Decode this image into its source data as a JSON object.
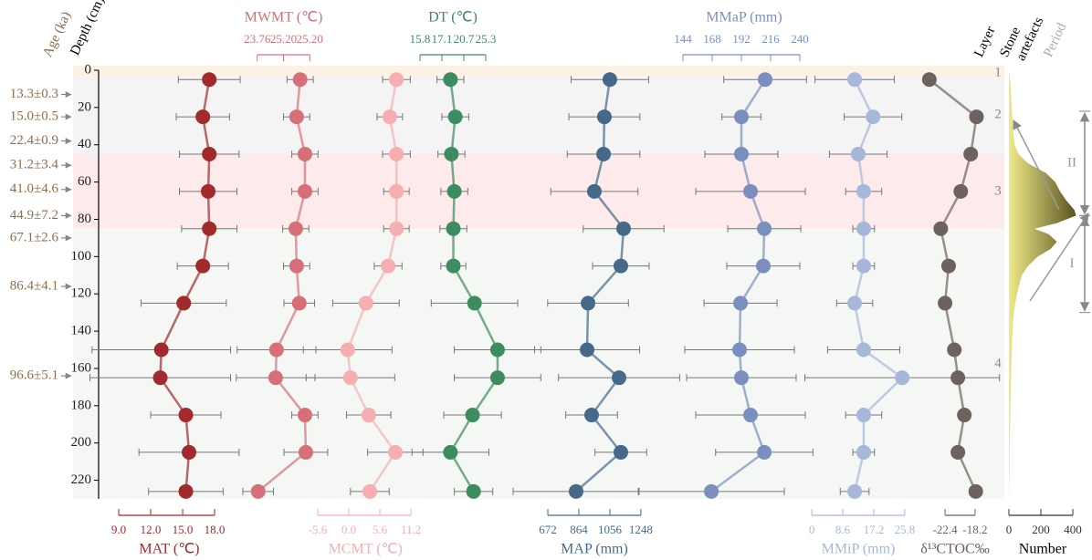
{
  "chart_data": [
    {
      "type": "profile",
      "y_label": "Depth (cm)",
      "ylim": [
        0,
        230
      ],
      "yticks": [
        0,
        20,
        40,
        60,
        80,
        100,
        120,
        140,
        160,
        180,
        200,
        220
      ],
      "depths": [
        5,
        25,
        45,
        65,
        85,
        105,
        125,
        150,
        165,
        185,
        205,
        226
      ],
      "series": [
        {
          "name": "MAT (℃)",
          "color": "#a12a2c",
          "axis": "bottom",
          "xlim": [
            8.5,
            19
          ],
          "xticks": [
            {
              "value": 9,
              "label": "9.0"
            },
            {
              "value": 12,
              "label": "12.0"
            },
            {
              "value": 15,
              "label": "15.0"
            },
            {
              "value": 18,
              "label": "18.0"
            }
          ],
          "values": [
            17.5,
            16.9,
            17.5,
            17.4,
            17.5,
            16.9,
            15.1,
            13.0,
            12.9,
            15.3,
            15.6,
            15.3
          ],
          "errors": [
            2.9,
            2.5,
            2.8,
            2.7,
            2.6,
            2.4,
            4.0,
            6.5,
            6.6,
            3.3,
            4.7,
            3.5
          ]
        },
        {
          "name": "MWMT (℃)",
          "color": "#d66f78",
          "axis": "top",
          "xlim": [
            23.2,
            25.6
          ],
          "xtick_labels": [
            "23.76",
            "25.20",
            "25.20"
          ],
          "values": [
            24.78,
            24.7,
            24.89,
            24.89,
            24.68,
            24.7,
            24.76,
            24.24,
            24.22,
            24.89,
            24.91,
            23.82
          ],
          "errors": [
            0.3,
            0.3,
            0.3,
            0.3,
            0.3,
            0.3,
            0.35,
            0.9,
            0.9,
            0.3,
            0.5,
            0.35
          ]
        },
        {
          "name": "MCMT (℃)",
          "color": "#f6aeb0",
          "axis": "bottom",
          "xlim": [
            -7,
            13
          ],
          "xticks": [
            {
              "value": -5.6,
              "label": "-5.6"
            },
            {
              "value": 0,
              "label": "0.0"
            },
            5.6,
            11.2
          ],
          "values": [
            8.6,
            7.4,
            8.6,
            8.6,
            8.6,
            7.1,
            3.1,
            -0.2,
            0.3,
            3.6,
            8.4,
            3.8
          ],
          "errors": [
            2.5,
            2.3,
            2.5,
            2.3,
            2.3,
            2.5,
            6.0,
            8.0,
            8.0,
            4.0,
            5.0,
            3.5
          ]
        },
        {
          "name": "DT (℃)",
          "color": "#3c8c5f",
          "axis": "top",
          "xlim": [
            14.85,
            26.25
          ],
          "xtick_labels": [
            "15.8",
            "17.1",
            "20.7",
            "25.3"
          ],
          "values": [
            20.3,
            20.8,
            20.4,
            20.7,
            20.6,
            20.6,
            22.8,
            25.2,
            25.2,
            22.6,
            20.3,
            22.7
          ],
          "errors": [
            1.4,
            1.4,
            1.4,
            1.4,
            1.4,
            1.3,
            4.5,
            4.5,
            4.5,
            3.0,
            4.0,
            2.0
          ]
        },
        {
          "name": "MAP (mm)",
          "color": "#46698a",
          "axis": "bottom",
          "xlim": [
            615.5,
            1305
          ],
          "xticks": [
            672,
            864,
            1056,
            1248
          ],
          "values": [
            1056,
            1022,
            1017,
            960,
            1141,
            1124,
            921,
            915,
            1113,
            943,
            1124,
            847
          ],
          "errors": [
            240,
            220,
            225,
            270,
            250,
            175,
            250,
            325,
            375,
            160,
            160,
            390
          ]
        },
        {
          "name": "MMaP (mm)",
          "color": "#7b8fbf",
          "axis": "top",
          "xlim": [
            138,
            250.5
          ],
          "xticks": [
            144,
            168,
            192,
            216,
            240
          ],
          "values": [
            211.5,
            192,
            192,
            199.5,
            210.8,
            210,
            191.3,
            190.5,
            192,
            199.5,
            210.8,
            167.3
          ],
          "errors": [
            34,
            16,
            30,
            45,
            30,
            30,
            30,
            45,
            45,
            45,
            40,
            60
          ]
        },
        {
          "name": "MMiP (mm)",
          "color": "#a7b7d9",
          "axis": "bottom",
          "xlim": [
            -2.3,
            28.1
          ],
          "xticks": [
            0,
            8.6,
            17.2,
            25.8
          ],
          "values": [
            11.9,
            17.0,
            12.9,
            14.4,
            14.4,
            14.4,
            11.9,
            14.4,
            25.1,
            14.4,
            14.4,
            11.9
          ],
          "errors": [
            11,
            8,
            8,
            5,
            3,
            3,
            5,
            10,
            27,
            5,
            3,
            4
          ]
        },
        {
          "name": "δ¹³CTOC‰",
          "color": "#6e625e",
          "axis": "bottom",
          "xlim": [
            -25.6,
            -16.4
          ],
          "xticks": [
            -22.4,
            -18.2
          ],
          "values": [
            -24.6,
            -18.0,
            -18.8,
            -20.2,
            -23.0,
            -21.9,
            -22.4,
            -21.1,
            -20.6,
            -19.7,
            -20.6,
            -18.1
          ]
        }
      ]
    },
    {
      "type": "area",
      "x_label": "Number",
      "xlim": [
        0,
        440
      ],
      "xticks": [
        0,
        200,
        400
      ],
      "color_start": "#eeea88",
      "color_end": "#5a5320",
      "depths": [
        0,
        5,
        10,
        20,
        30,
        40,
        45,
        50,
        55,
        60,
        65,
        70,
        75,
        78,
        82,
        85,
        88,
        92,
        96,
        100,
        105,
        110,
        120,
        130,
        140,
        160,
        180,
        200,
        220,
        230
      ],
      "values": [
        0,
        8,
        12,
        18,
        25,
        35,
        60,
        120,
        230,
        290,
        320,
        360,
        410,
        420,
        300,
        160,
        250,
        300,
        260,
        180,
        120,
        80,
        50,
        30,
        22,
        15,
        10,
        6,
        3,
        0
      ]
    }
  ],
  "age_label": "Age (ka)",
  "ages": [
    {
      "label": "13.3±0.3",
      "depth": 13
    },
    {
      "label": "15.0±0.5",
      "depth": 25
    },
    {
      "label": "22.4±0.9",
      "depth": 38
    },
    {
      "label": "31.2±3.4",
      "depth": 51
    },
    {
      "label": "41.0±4.6",
      "depth": 64
    },
    {
      "label": "44.9±7.2",
      "depth": 78
    },
    {
      "label": "67.1±2.6",
      "depth": 90
    },
    {
      "label": "86.4±4.1",
      "depth": 116
    },
    {
      "label": "96.6±5.1",
      "depth": 164
    }
  ],
  "layer_label": "Layer",
  "layers": [
    {
      "label": "1",
      "top": 0,
      "bottom": 3,
      "color": "#fdf1e6"
    },
    {
      "label": "2",
      "top": 3,
      "bottom": 45,
      "color": "#f4f4f4"
    },
    {
      "label": "3",
      "top": 45,
      "bottom": 85,
      "color": "#fcebea"
    },
    {
      "label": "4",
      "top": 85,
      "bottom": 230,
      "color": "#f4f7f4"
    }
  ],
  "artefacts_label": [
    "Stone",
    "artefacts"
  ],
  "period_label": "Period",
  "periods": [
    {
      "label": "II",
      "top": 22,
      "bottom": 78
    },
    {
      "label": "I",
      "top": 78,
      "bottom": 130
    }
  ]
}
